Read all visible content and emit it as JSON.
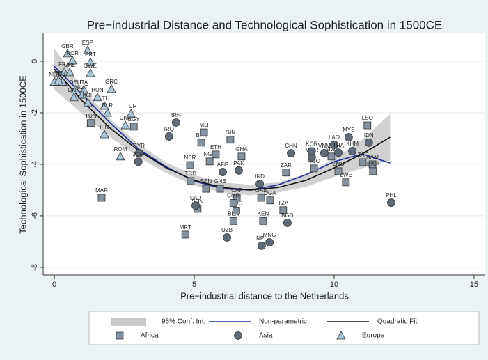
{
  "chart_data": {
    "type": "scatter",
    "title": "Pre−industrial Distance and Technological Sophistication in 1500CE",
    "xlabel": "Pre−industrial distance to the Netherlands",
    "ylabel": "Technological Sophistication in 1500CE",
    "xlim": [
      -0.4,
      15.4
    ],
    "ylim": [
      -8.3,
      1.08
    ],
    "xticks": [
      0,
      5,
      10,
      15
    ],
    "yticks": [
      0,
      -2,
      -4,
      -6,
      -8
    ],
    "grid": true,
    "fits": [
      {
        "name": "95% Conf. Int.",
        "kind": "band",
        "color": "#c9c9c9",
        "x": [
          0,
          1,
          2,
          3,
          4,
          5,
          6,
          7,
          8,
          9,
          10,
          11,
          12
        ],
        "upper": [
          0.5,
          -1.04,
          -2.25,
          -3.21,
          -3.94,
          -4.42,
          -4.7,
          -4.8,
          -4.7,
          -4.37,
          -3.79,
          -3.05,
          -2.05
        ],
        "lower": [
          -1.1,
          -2.04,
          -2.95,
          -3.71,
          -4.34,
          -4.82,
          -5.1,
          -5.2,
          -5.1,
          -4.87,
          -4.49,
          -4.15,
          -3.85
        ]
      },
      {
        "name": "Non-parametric",
        "kind": "line",
        "color": "#1f2f9a",
        "x": [
          0,
          1,
          2,
          3,
          4,
          5,
          6,
          7,
          8,
          9,
          10,
          11,
          12
        ],
        "values": [
          -0.2,
          -1.3,
          -2.4,
          -3.4,
          -4.1,
          -4.65,
          -4.95,
          -5.0,
          -4.8,
          -4.4,
          -3.9,
          -3.6,
          -3.95
        ]
      },
      {
        "name": "Quadratic Fit",
        "kind": "line",
        "color": "#111111",
        "x": [
          0,
          1,
          2,
          3,
          4,
          5,
          6,
          7,
          8,
          9,
          10,
          11,
          12
        ],
        "values": [
          -0.3,
          -1.54,
          -2.6,
          -3.46,
          -4.14,
          -4.62,
          -4.9,
          -5.0,
          -4.9,
          -4.62,
          -4.14,
          -3.6,
          -2.95
        ]
      }
    ],
    "series": [
      {
        "name": "Africa",
        "marker": "square",
        "color": "#8592a0",
        "points": [
          {
            "label": "EGY",
            "x": 2.84,
            "y": -2.54
          },
          {
            "label": "MAR",
            "x": 1.69,
            "y": -5.3
          },
          {
            "label": "TUN",
            "x": 1.3,
            "y": -2.4
          },
          {
            "label": "NER",
            "x": 4.85,
            "y": -4.03
          },
          {
            "label": "TCD",
            "x": 4.87,
            "y": -4.65
          },
          {
            "label": "BFA",
            "x": 5.25,
            "y": -3.16
          },
          {
            "label": "MLI",
            "x": 5.35,
            "y": -2.76
          },
          {
            "label": "NGA",
            "x": 5.55,
            "y": -3.89
          },
          {
            "label": "ETH",
            "x": 5.77,
            "y": -3.62
          },
          {
            "label": "SEN",
            "x": 5.42,
            "y": -4.95
          },
          {
            "label": "GNB",
            "x": 5.92,
            "y": -4.95
          },
          {
            "label": "CAF",
            "x": 6.52,
            "y": -5.3
          },
          {
            "label": "SDN",
            "x": 5.12,
            "y": -5.73
          },
          {
            "label": "MRT",
            "x": 4.68,
            "y": -6.73
          },
          {
            "label": "GHA",
            "x": 6.69,
            "y": -3.7
          },
          {
            "label": "GIN",
            "x": 6.29,
            "y": -3.05
          },
          {
            "label": "BEN",
            "x": 6.4,
            "y": -6.2
          },
          {
            "label": "COG",
            "x": 6.5,
            "y": -5.8
          },
          {
            "label": "CMR",
            "x": 6.4,
            "y": -5.5
          },
          {
            "label": "GAB",
            "x": 7.39,
            "y": -5.3
          },
          {
            "label": "UGA",
            "x": 7.71,
            "y": -5.4
          },
          {
            "label": "KEN",
            "x": 7.46,
            "y": -6.2
          },
          {
            "label": "TZA",
            "x": 8.18,
            "y": -5.78
          },
          {
            "label": "ZAR",
            "x": 8.28,
            "y": -4.32
          },
          {
            "label": "AGO",
            "x": 9.28,
            "y": -4.16
          },
          {
            "label": "ZMB",
            "x": 10.15,
            "y": -4.27
          },
          {
            "label": "ZWE",
            "x": 10.42,
            "y": -4.7
          },
          {
            "label": "LSO",
            "x": 11.19,
            "y": -2.49
          },
          {
            "label": "ZAF",
            "x": 11.02,
            "y": -3.92
          },
          {
            "label": "NAM",
            "x": 11.37,
            "y": -4.0
          },
          {
            "label": "BWA",
            "x": 11.39,
            "y": -4.27
          },
          {
            "label": "MWI",
            "x": 9.9,
            "y": -3.7
          }
        ]
      },
      {
        "name": "Asia",
        "marker": "circle",
        "color": "#5f6b77",
        "points": [
          {
            "label": "IRN",
            "x": 4.35,
            "y": -2.38
          },
          {
            "label": "IRQ",
            "x": 4.1,
            "y": -2.92
          },
          {
            "label": "SYR",
            "x": 3.03,
            "y": -3.57
          },
          {
            "label": "JOR",
            "x": 3.0,
            "y": -3.9
          },
          {
            "label": "SAU",
            "x": 5.05,
            "y": -5.6
          },
          {
            "label": "AFG",
            "x": 6.02,
            "y": -4.3
          },
          {
            "label": "PAK",
            "x": 6.59,
            "y": -4.24
          },
          {
            "label": "CHN",
            "x": 8.46,
            "y": -3.57
          },
          {
            "label": "IND",
            "x": 7.34,
            "y": -4.76
          },
          {
            "label": "UZB",
            "x": 6.17,
            "y": -6.84
          },
          {
            "label": "NPL",
            "x": 7.41,
            "y": -7.16
          },
          {
            "label": "MNG",
            "x": 7.69,
            "y": -7.03
          },
          {
            "label": "BGD",
            "x": 8.33,
            "y": -6.27
          },
          {
            "label": "MMR",
            "x": 9.2,
            "y": -3.73
          },
          {
            "label": "KOR",
            "x": 9.2,
            "y": -3.5
          },
          {
            "label": "VNM",
            "x": 9.65,
            "y": -3.57
          },
          {
            "label": "LAO",
            "x": 10.0,
            "y": -3.24
          },
          {
            "label": "THA",
            "x": 10.15,
            "y": -3.55
          },
          {
            "label": "KHM",
            "x": 10.65,
            "y": -3.49
          },
          {
            "label": "MYS",
            "x": 10.52,
            "y": -2.95
          },
          {
            "label": "IDN",
            "x": 11.24,
            "y": -3.16
          },
          {
            "label": "PHL",
            "x": 12.04,
            "y": -5.49
          }
        ]
      },
      {
        "name": "Europe",
        "marker": "triangle",
        "color": "#a8c4d6",
        "points": [
          {
            "label": "ESP",
            "x": 1.19,
            "y": 0.43
          },
          {
            "label": "GBR",
            "x": 0.47,
            "y": 0.3
          },
          {
            "label": "PRT",
            "x": 1.29,
            "y": -0.03
          },
          {
            "label": "NOR",
            "x": 0.65,
            "y": 0.03
          },
          {
            "label": "FRA",
            "x": 0.35,
            "y": -0.41
          },
          {
            "label": "CHE",
            "x": 0.55,
            "y": -0.43
          },
          {
            "label": "SWE",
            "x": 1.29,
            "y": -0.46
          },
          {
            "label": "NLD",
            "x": 0,
            "y": -0.8
          },
          {
            "label": "IRL",
            "x": 0.3,
            "y": -0.8
          },
          {
            "label": "BEL",
            "x": 0.15,
            "y": -0.75
          },
          {
            "label": "DEU",
            "x": 0.75,
            "y": -1.1
          },
          {
            "label": "ITA",
            "x": 1.05,
            "y": -1.1
          },
          {
            "label": "DNK",
            "x": 0.7,
            "y": -1.4
          },
          {
            "label": "AUT",
            "x": 1.0,
            "y": -1.3
          },
          {
            "label": "GRC",
            "x": 2.04,
            "y": -1.08
          },
          {
            "label": "POL",
            "x": 1.2,
            "y": -1.6
          },
          {
            "label": "HUN",
            "x": 1.54,
            "y": -1.4
          },
          {
            "label": "LTU",
            "x": 1.79,
            "y": -1.73
          },
          {
            "label": "BLR",
            "x": 1.9,
            "y": -2.0
          },
          {
            "label": "FIN",
            "x": 1.79,
            "y": -2.84
          },
          {
            "label": "UKR",
            "x": 2.54,
            "y": -2.49
          },
          {
            "label": "ROM",
            "x": 2.36,
            "y": -3.7
          },
          {
            "label": "TUR",
            "x": 2.74,
            "y": -2.03
          }
        ]
      }
    ]
  }
}
